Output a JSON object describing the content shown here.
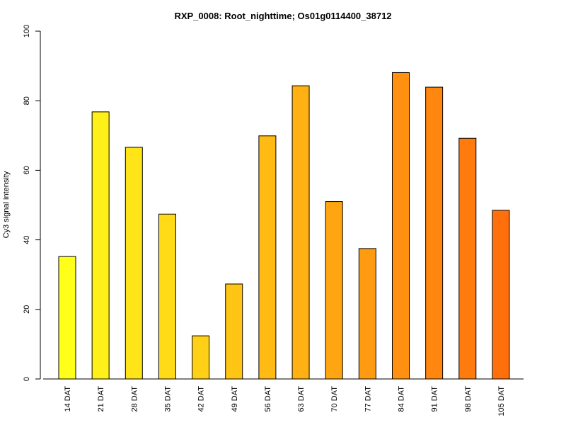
{
  "chart_data": {
    "type": "bar",
    "title": "RXP_0008: Root_nighttime; Os01g0114400_38712",
    "xlabel": "",
    "ylabel": "Cy3 signal intensity",
    "ylim": [
      0,
      100
    ],
    "yticks": [
      0,
      20,
      40,
      60,
      80,
      100
    ],
    "grid": false,
    "categories": [
      "14 DAT",
      "21 DAT",
      "28 DAT",
      "35 DAT",
      "42 DAT",
      "49 DAT",
      "56 DAT",
      "63 DAT",
      "70 DAT",
      "77 DAT",
      "84 DAT",
      "91 DAT",
      "98 DAT",
      "105 DAT"
    ],
    "values": [
      35.2,
      76.8,
      66.6,
      47.4,
      12.4,
      27.3,
      69.9,
      84.3,
      51.0,
      37.5,
      88.1,
      83.9,
      69.2,
      48.5
    ],
    "colors": [
      "#ffff1a",
      "#fff019",
      "#ffe518",
      "#ffda17",
      "#ffd016",
      "#ffc515",
      "#ffba14",
      "#ffb013",
      "#ffa512",
      "#ff9b11",
      "#ff9010",
      "#ff860f",
      "#ff7b0e",
      "#ff700d"
    ]
  }
}
